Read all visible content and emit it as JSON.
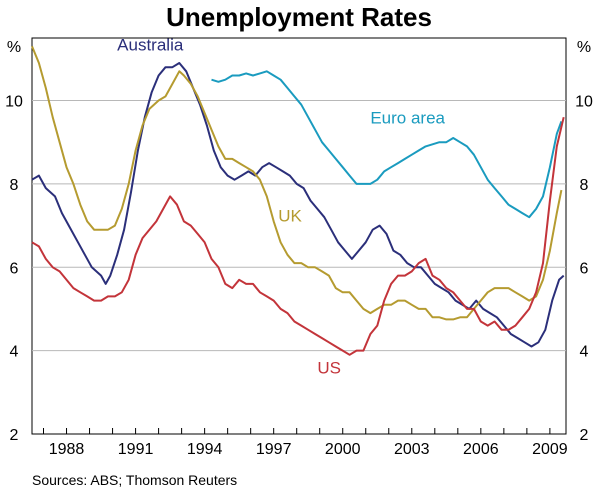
{
  "chart_data": {
    "type": "line",
    "title": "Unemployment Rates",
    "y_unit_left": "%",
    "y_unit_right": "%",
    "ylim": [
      2,
      11.5
    ],
    "xlim": [
      1986.5,
      2009.7
    ],
    "yticks": [
      2,
      4,
      6,
      8,
      10
    ],
    "ytick_labels": [
      "2",
      "4",
      "6",
      "8",
      "10"
    ],
    "xticks": [
      1988,
      1991,
      1994,
      1997,
      2000,
      2003,
      2006,
      2009
    ],
    "xtick_labels": [
      "1988",
      "1991",
      "1994",
      "1997",
      "2000",
      "2003",
      "2006",
      "2009"
    ],
    "grid": true,
    "source": "Sources: ABS; Thomson Reuters",
    "series": [
      {
        "name": "Australia",
        "color": "#2b2f7a",
        "label_pos": {
          "x": 1990.2,
          "y": 11.2
        },
        "points": [
          [
            1986.5,
            8.1
          ],
          [
            1986.8,
            8.2
          ],
          [
            1987.1,
            7.9
          ],
          [
            1987.5,
            7.7
          ],
          [
            1987.8,
            7.3
          ],
          [
            1988.1,
            7.0
          ],
          [
            1988.5,
            6.6
          ],
          [
            1988.8,
            6.3
          ],
          [
            1989.1,
            6.0
          ],
          [
            1989.5,
            5.8
          ],
          [
            1989.7,
            5.6
          ],
          [
            1989.9,
            5.8
          ],
          [
            1990.2,
            6.3
          ],
          [
            1990.5,
            6.9
          ],
          [
            1990.8,
            7.8
          ],
          [
            1991.1,
            8.8
          ],
          [
            1991.4,
            9.6
          ],
          [
            1991.7,
            10.2
          ],
          [
            1992.0,
            10.6
          ],
          [
            1992.3,
            10.8
          ],
          [
            1992.6,
            10.8
          ],
          [
            1992.9,
            10.9
          ],
          [
            1993.2,
            10.7
          ],
          [
            1993.5,
            10.3
          ],
          [
            1993.8,
            9.9
          ],
          [
            1994.1,
            9.4
          ],
          [
            1994.4,
            8.8
          ],
          [
            1994.7,
            8.4
          ],
          [
            1995.0,
            8.2
          ],
          [
            1995.3,
            8.1
          ],
          [
            1995.6,
            8.2
          ],
          [
            1995.9,
            8.3
          ],
          [
            1996.2,
            8.2
          ],
          [
            1996.5,
            8.4
          ],
          [
            1996.8,
            8.5
          ],
          [
            1997.1,
            8.4
          ],
          [
            1997.4,
            8.3
          ],
          [
            1997.7,
            8.2
          ],
          [
            1998.0,
            8.0
          ],
          [
            1998.3,
            7.9
          ],
          [
            1998.6,
            7.6
          ],
          [
            1998.9,
            7.4
          ],
          [
            1999.2,
            7.2
          ],
          [
            1999.5,
            6.9
          ],
          [
            1999.8,
            6.6
          ],
          [
            2000.1,
            6.4
          ],
          [
            2000.4,
            6.2
          ],
          [
            2000.7,
            6.4
          ],
          [
            2001.0,
            6.6
          ],
          [
            2001.3,
            6.9
          ],
          [
            2001.6,
            7.0
          ],
          [
            2001.9,
            6.8
          ],
          [
            2002.2,
            6.4
          ],
          [
            2002.5,
            6.3
          ],
          [
            2002.8,
            6.1
          ],
          [
            2003.1,
            6.0
          ],
          [
            2003.4,
            6.0
          ],
          [
            2003.7,
            5.8
          ],
          [
            2004.0,
            5.6
          ],
          [
            2004.3,
            5.5
          ],
          [
            2004.6,
            5.4
          ],
          [
            2004.9,
            5.2
          ],
          [
            2005.2,
            5.1
          ],
          [
            2005.5,
            5.0
          ],
          [
            2005.8,
            5.2
          ],
          [
            2006.1,
            5.0
          ],
          [
            2006.4,
            4.9
          ],
          [
            2006.7,
            4.8
          ],
          [
            2007.0,
            4.6
          ],
          [
            2007.3,
            4.4
          ],
          [
            2007.6,
            4.3
          ],
          [
            2007.9,
            4.2
          ],
          [
            2008.2,
            4.1
          ],
          [
            2008.5,
            4.2
          ],
          [
            2008.8,
            4.5
          ],
          [
            2009.1,
            5.2
          ],
          [
            2009.4,
            5.7
          ],
          [
            2009.6,
            5.8
          ]
        ]
      },
      {
        "name": "Euro area",
        "color": "#1a9bbf",
        "label_pos": {
          "x": 2001.2,
          "y": 9.45
        },
        "points": [
          [
            1994.3,
            10.5
          ],
          [
            1994.6,
            10.45
          ],
          [
            1994.9,
            10.5
          ],
          [
            1995.2,
            10.6
          ],
          [
            1995.5,
            10.6
          ],
          [
            1995.8,
            10.65
          ],
          [
            1996.1,
            10.6
          ],
          [
            1996.4,
            10.65
          ],
          [
            1996.7,
            10.7
          ],
          [
            1997.0,
            10.6
          ],
          [
            1997.3,
            10.5
          ],
          [
            1997.6,
            10.3
          ],
          [
            1997.9,
            10.1
          ],
          [
            1998.2,
            9.9
          ],
          [
            1998.5,
            9.6
          ],
          [
            1998.8,
            9.3
          ],
          [
            1999.1,
            9.0
          ],
          [
            1999.4,
            8.8
          ],
          [
            1999.7,
            8.6
          ],
          [
            2000.0,
            8.4
          ],
          [
            2000.3,
            8.2
          ],
          [
            2000.6,
            8.0
          ],
          [
            2000.9,
            8.0
          ],
          [
            2001.2,
            8.0
          ],
          [
            2001.5,
            8.1
          ],
          [
            2001.8,
            8.3
          ],
          [
            2002.1,
            8.4
          ],
          [
            2002.4,
            8.5
          ],
          [
            2002.7,
            8.6
          ],
          [
            2003.0,
            8.7
          ],
          [
            2003.3,
            8.8
          ],
          [
            2003.6,
            8.9
          ],
          [
            2003.9,
            8.95
          ],
          [
            2004.2,
            9.0
          ],
          [
            2004.5,
            9.0
          ],
          [
            2004.8,
            9.1
          ],
          [
            2005.1,
            9.0
          ],
          [
            2005.4,
            8.9
          ],
          [
            2005.7,
            8.7
          ],
          [
            2006.0,
            8.4
          ],
          [
            2006.3,
            8.1
          ],
          [
            2006.6,
            7.9
          ],
          [
            2006.9,
            7.7
          ],
          [
            2007.2,
            7.5
          ],
          [
            2007.5,
            7.4
          ],
          [
            2007.8,
            7.3
          ],
          [
            2008.1,
            7.2
          ],
          [
            2008.4,
            7.4
          ],
          [
            2008.7,
            7.7
          ],
          [
            2009.0,
            8.4
          ],
          [
            2009.3,
            9.2
          ],
          [
            2009.5,
            9.5
          ]
        ]
      },
      {
        "name": "UK",
        "color": "#b59b30",
        "label_pos": {
          "x": 1997.2,
          "y": 7.1
        },
        "points": [
          [
            1986.5,
            11.3
          ],
          [
            1986.8,
            10.9
          ],
          [
            1987.1,
            10.3
          ],
          [
            1987.4,
            9.6
          ],
          [
            1987.7,
            9.0
          ],
          [
            1988.0,
            8.4
          ],
          [
            1988.3,
            8.0
          ],
          [
            1988.6,
            7.5
          ],
          [
            1988.9,
            7.1
          ],
          [
            1989.2,
            6.9
          ],
          [
            1989.5,
            6.9
          ],
          [
            1989.8,
            6.9
          ],
          [
            1990.1,
            7.0
          ],
          [
            1990.4,
            7.4
          ],
          [
            1990.7,
            8.0
          ],
          [
            1991.0,
            8.8
          ],
          [
            1991.3,
            9.4
          ],
          [
            1991.6,
            9.8
          ],
          [
            1992.0,
            10.0
          ],
          [
            1992.3,
            10.1
          ],
          [
            1992.6,
            10.4
          ],
          [
            1992.9,
            10.7
          ],
          [
            1993.1,
            10.6
          ],
          [
            1993.4,
            10.4
          ],
          [
            1993.7,
            10.1
          ],
          [
            1994.0,
            9.7
          ],
          [
            1994.3,
            9.3
          ],
          [
            1994.6,
            8.9
          ],
          [
            1994.9,
            8.6
          ],
          [
            1995.2,
            8.6
          ],
          [
            1995.5,
            8.5
          ],
          [
            1995.8,
            8.4
          ],
          [
            1996.1,
            8.3
          ],
          [
            1996.4,
            8.1
          ],
          [
            1996.7,
            7.7
          ],
          [
            1997.0,
            7.1
          ],
          [
            1997.3,
            6.6
          ],
          [
            1997.6,
            6.3
          ],
          [
            1997.9,
            6.1
          ],
          [
            1998.2,
            6.1
          ],
          [
            1998.5,
            6.0
          ],
          [
            1998.8,
            6.0
          ],
          [
            1999.1,
            5.9
          ],
          [
            1999.4,
            5.8
          ],
          [
            1999.7,
            5.5
          ],
          [
            2000.0,
            5.4
          ],
          [
            2000.3,
            5.4
          ],
          [
            2000.6,
            5.2
          ],
          [
            2000.9,
            5.0
          ],
          [
            2001.2,
            4.9
          ],
          [
            2001.5,
            5.0
          ],
          [
            2001.8,
            5.1
          ],
          [
            2002.1,
            5.1
          ],
          [
            2002.4,
            5.2
          ],
          [
            2002.7,
            5.2
          ],
          [
            2003.0,
            5.1
          ],
          [
            2003.3,
            5.0
          ],
          [
            2003.6,
            5.0
          ],
          [
            2003.9,
            4.8
          ],
          [
            2004.2,
            4.8
          ],
          [
            2004.5,
            4.75
          ],
          [
            2004.8,
            4.75
          ],
          [
            2005.1,
            4.8
          ],
          [
            2005.4,
            4.8
          ],
          [
            2005.7,
            5.0
          ],
          [
            2006.0,
            5.2
          ],
          [
            2006.3,
            5.4
          ],
          [
            2006.6,
            5.5
          ],
          [
            2006.9,
            5.5
          ],
          [
            2007.2,
            5.5
          ],
          [
            2007.5,
            5.4
          ],
          [
            2007.8,
            5.3
          ],
          [
            2008.1,
            5.2
          ],
          [
            2008.4,
            5.3
          ],
          [
            2008.7,
            5.7
          ],
          [
            2009.0,
            6.4
          ],
          [
            2009.3,
            7.3
          ],
          [
            2009.5,
            7.85
          ]
        ]
      },
      {
        "name": "US",
        "color": "#c3343a",
        "label_pos": {
          "x": 1998.9,
          "y": 3.45
        },
        "points": [
          [
            1986.5,
            6.6
          ],
          [
            1986.8,
            6.5
          ],
          [
            1987.1,
            6.2
          ],
          [
            1987.4,
            6.0
          ],
          [
            1987.7,
            5.9
          ],
          [
            1988.0,
            5.7
          ],
          [
            1988.3,
            5.5
          ],
          [
            1988.6,
            5.4
          ],
          [
            1988.9,
            5.3
          ],
          [
            1989.2,
            5.2
          ],
          [
            1989.5,
            5.2
          ],
          [
            1989.8,
            5.3
          ],
          [
            1990.1,
            5.3
          ],
          [
            1990.4,
            5.4
          ],
          [
            1990.7,
            5.7
          ],
          [
            1991.0,
            6.3
          ],
          [
            1991.3,
            6.7
          ],
          [
            1991.6,
            6.9
          ],
          [
            1991.9,
            7.1
          ],
          [
            1992.2,
            7.4
          ],
          [
            1992.5,
            7.7
          ],
          [
            1992.8,
            7.5
          ],
          [
            1993.1,
            7.1
          ],
          [
            1993.4,
            7.0
          ],
          [
            1993.7,
            6.8
          ],
          [
            1994.0,
            6.6
          ],
          [
            1994.3,
            6.2
          ],
          [
            1994.6,
            6.0
          ],
          [
            1994.9,
            5.6
          ],
          [
            1995.2,
            5.5
          ],
          [
            1995.5,
            5.7
          ],
          [
            1995.8,
            5.6
          ],
          [
            1996.1,
            5.6
          ],
          [
            1996.4,
            5.4
          ],
          [
            1996.7,
            5.3
          ],
          [
            1997.0,
            5.2
          ],
          [
            1997.3,
            5.0
          ],
          [
            1997.6,
            4.9
          ],
          [
            1997.9,
            4.7
          ],
          [
            1998.2,
            4.6
          ],
          [
            1998.5,
            4.5
          ],
          [
            1998.8,
            4.4
          ],
          [
            1999.1,
            4.3
          ],
          [
            1999.4,
            4.2
          ],
          [
            1999.7,
            4.1
          ],
          [
            2000.0,
            4.0
          ],
          [
            2000.3,
            3.9
          ],
          [
            2000.6,
            4.0
          ],
          [
            2000.9,
            4.0
          ],
          [
            2001.2,
            4.4
          ],
          [
            2001.5,
            4.6
          ],
          [
            2001.8,
            5.2
          ],
          [
            2002.1,
            5.6
          ],
          [
            2002.4,
            5.8
          ],
          [
            2002.7,
            5.8
          ],
          [
            2003.0,
            5.9
          ],
          [
            2003.3,
            6.1
          ],
          [
            2003.6,
            6.2
          ],
          [
            2003.9,
            5.8
          ],
          [
            2004.2,
            5.7
          ],
          [
            2004.5,
            5.5
          ],
          [
            2004.8,
            5.4
          ],
          [
            2005.1,
            5.2
          ],
          [
            2005.4,
            5.0
          ],
          [
            2005.7,
            5.0
          ],
          [
            2006.0,
            4.7
          ],
          [
            2006.3,
            4.6
          ],
          [
            2006.6,
            4.7
          ],
          [
            2006.9,
            4.5
          ],
          [
            2007.2,
            4.5
          ],
          [
            2007.5,
            4.6
          ],
          [
            2007.8,
            4.8
          ],
          [
            2008.1,
            5.0
          ],
          [
            2008.4,
            5.4
          ],
          [
            2008.7,
            6.1
          ],
          [
            2009.0,
            7.6
          ],
          [
            2009.3,
            8.9
          ],
          [
            2009.6,
            9.6
          ]
        ]
      }
    ]
  }
}
